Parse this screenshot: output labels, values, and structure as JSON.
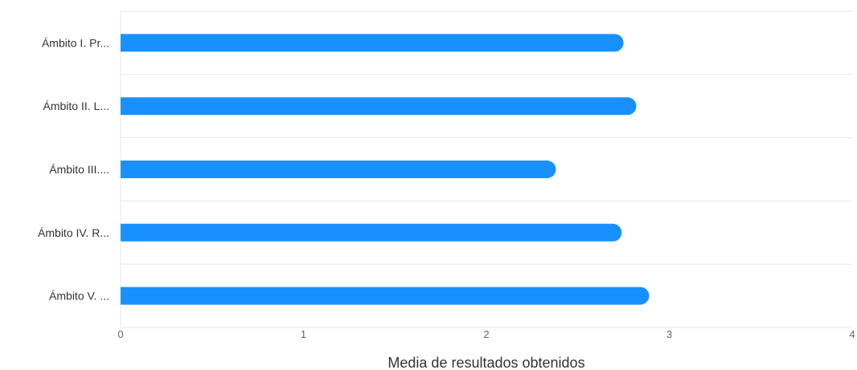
{
  "chart_data": {
    "type": "bar",
    "orientation": "horizontal",
    "categories": [
      "Ámbito I. Pr...",
      "Ámbito II. L...",
      "Ámbito III....",
      "Ámbito IV. R...",
      "Ámbito V. ..."
    ],
    "values": [
      2.75,
      2.82,
      2.38,
      2.74,
      2.89
    ],
    "xlabel": "Media de resultados obtenidos",
    "ylabel": "",
    "xlim": [
      0,
      4
    ],
    "xticks": [
      "0",
      "1",
      "2",
      "3",
      "4"
    ],
    "grid": true,
    "bar_color": "#1890ff",
    "grid_color": "#e8e8e8"
  }
}
